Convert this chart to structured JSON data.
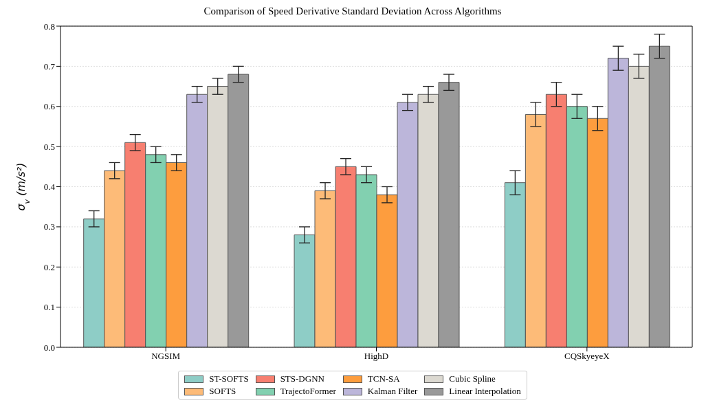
{
  "chart_data": {
    "type": "bar",
    "title": "Comparison of Speed Derivative Standard Deviation Across Algorithms",
    "ylabel": "σ$_{v}$ (m/s²)",
    "categories": [
      "NGSIM",
      "HighD",
      "CQSkyeyeX"
    ],
    "series": [
      {
        "name": "ST-SOFTS",
        "color": "#8ecdc6",
        "values": [
          0.32,
          0.28,
          0.41
        ],
        "errors": [
          0.02,
          0.02,
          0.03
        ]
      },
      {
        "name": "SOFTS",
        "color": "#fdbb78",
        "values": [
          0.44,
          0.39,
          0.58
        ],
        "errors": [
          0.02,
          0.02,
          0.03
        ]
      },
      {
        "name": "STS-DGNN",
        "color": "#f77f70",
        "values": [
          0.51,
          0.45,
          0.63
        ],
        "errors": [
          0.02,
          0.02,
          0.03
        ]
      },
      {
        "name": "TrajectoFormer",
        "color": "#82d0b0",
        "values": [
          0.48,
          0.43,
          0.6
        ],
        "errors": [
          0.02,
          0.02,
          0.03
        ]
      },
      {
        "name": "TCN-SA",
        "color": "#fd9d3e",
        "values": [
          0.46,
          0.38,
          0.57
        ],
        "errors": [
          0.02,
          0.02,
          0.03
        ]
      },
      {
        "name": "Kalman Filter",
        "color": "#bcb6da",
        "values": [
          0.63,
          0.61,
          0.72
        ],
        "errors": [
          0.02,
          0.02,
          0.03
        ]
      },
      {
        "name": "Cubic Spline",
        "color": "#dcd9d1",
        "values": [
          0.65,
          0.63,
          0.7
        ],
        "errors": [
          0.02,
          0.02,
          0.03
        ]
      },
      {
        "name": "Linear Interpolation",
        "color": "#999999",
        "values": [
          0.68,
          0.66,
          0.75
        ],
        "errors": [
          0.02,
          0.02,
          0.03
        ]
      }
    ],
    "ylim": [
      0,
      0.8
    ],
    "yticks": [
      {
        "value": 0,
        "label": "0.0"
      },
      0.1,
      0.2,
      0.3,
      0.4,
      0.5,
      0.6,
      0.7,
      0.8
    ],
    "grid": "y",
    "legend": "bottom"
  }
}
